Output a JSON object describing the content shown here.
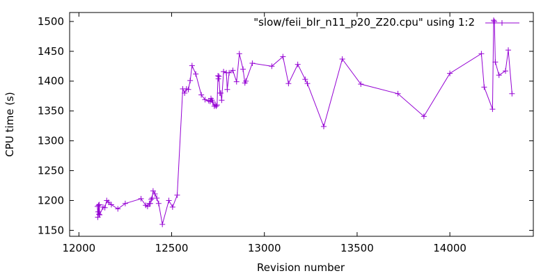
{
  "chart_data": {
    "type": "line",
    "xlabel": "Revision number",
    "ylabel": "CPU time (s)",
    "xlim": [
      11950,
      14450
    ],
    "ylim": [
      1140,
      1515
    ],
    "xticks": [
      12000,
      12500,
      13000,
      13500,
      14000
    ],
    "yticks": [
      1150,
      1200,
      1250,
      1300,
      1350,
      1400,
      1450,
      1500
    ],
    "grid": false,
    "legend_position": "top-right",
    "series": [
      {
        "name": "\"slow/feii_blr_n11_p20_Z20.cpu\" using 1:2",
        "color": "#9400d3",
        "x": [
          12100,
          12102,
          12104,
          12106,
          12108,
          12110,
          12112,
          12130,
          12140,
          12150,
          12160,
          12175,
          12210,
          12250,
          12335,
          12360,
          12370,
          12380,
          12385,
          12390,
          12395,
          12400,
          12410,
          12420,
          12430,
          12450,
          12485,
          12505,
          12530,
          12560,
          12570,
          12580,
          12590,
          12600,
          12610,
          12630,
          12660,
          12680,
          12700,
          12708,
          12712,
          12718,
          12722,
          12730,
          12735,
          12740,
          12745,
          12750,
          12752,
          12755,
          12760,
          12765,
          12770,
          12780,
          12795,
          12800,
          12810,
          12830,
          12850,
          12865,
          12885,
          12895,
          12900,
          12935,
          13040,
          13100,
          13130,
          13180,
          13220,
          13232,
          13320,
          13420,
          13520,
          13720,
          13860,
          14000,
          14170,
          14185,
          14230,
          14236,
          14240,
          14245,
          14265,
          14300,
          14315,
          14335
        ],
        "y": [
          1190,
          1172,
          1181,
          1192,
          1177,
          1193,
          1176,
          1189,
          1188,
          1200,
          1197,
          1193,
          1186,
          1195,
          1203,
          1192,
          1190,
          1195,
          1195,
          1202,
          1204,
          1216,
          1211,
          1204,
          1195,
          1160,
          1200,
          1189,
          1209,
          1387,
          1380,
          1387,
          1386,
          1401,
          1426,
          1412,
          1377,
          1369,
          1367,
          1366,
          1371,
          1368,
          1365,
          1358,
          1360,
          1358,
          1360,
          1409,
          1404,
          1408,
          1380,
          1380,
          1368,
          1416,
          1414,
          1386,
          1414,
          1418,
          1399,
          1446,
          1420,
          1397,
          1400,
          1430,
          1425,
          1441,
          1396,
          1428,
          1403,
          1396,
          1324,
          1437,
          1395,
          1379,
          1341,
          1413,
          1446,
          1390,
          1353,
          1502,
          1500,
          1432,
          1410,
          1417,
          1452,
          1379
        ]
      }
    ]
  }
}
